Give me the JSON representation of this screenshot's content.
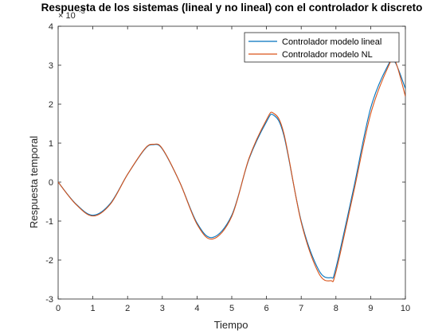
{
  "chart_data": {
    "type": "line",
    "title": "Respuesta de los sistemas (lineal y no lineal) con el controlador k discreto",
    "xlabel": "Tiempo",
    "ylabel": "Respuesta temporal",
    "xlim": [
      0,
      10
    ],
    "ylim": [
      -3,
      4
    ],
    "y_multiplier_label": "× 10",
    "y_multiplier_exponent": "-3",
    "xticks": [
      "0",
      "1",
      "2",
      "3",
      "4",
      "5",
      "6",
      "7",
      "8",
      "9",
      "10"
    ],
    "yticks": [
      "-3",
      "-2",
      "-1",
      "0",
      "1",
      "2",
      "3",
      "4"
    ],
    "grid": false,
    "legend_position": "top-right",
    "x": [
      0,
      0.5,
      1.0,
      1.5,
      2.0,
      2.5,
      2.75,
      3.0,
      3.5,
      4.0,
      4.45,
      5.0,
      5.5,
      6.0,
      6.2,
      6.5,
      7.0,
      7.5,
      7.85,
      8.0,
      8.5,
      9.0,
      9.5,
      9.7,
      10.0
    ],
    "series": [
      {
        "name": "Controlador modelo lineal",
        "color": "#0072BD",
        "values": [
          0,
          -0.55,
          -0.85,
          -0.55,
          0.2,
          0.85,
          0.96,
          0.85,
          0.0,
          -1.05,
          -1.42,
          -0.85,
          0.6,
          1.55,
          1.72,
          1.2,
          -1.0,
          -2.25,
          -2.45,
          -2.2,
          -0.2,
          1.9,
          3.0,
          3.08,
          2.4
        ]
      },
      {
        "name": "Controlador modelo NL",
        "color": "#D95319",
        "values": [
          0,
          -0.56,
          -0.87,
          -0.57,
          0.2,
          0.86,
          0.97,
          0.86,
          0.0,
          -1.08,
          -1.46,
          -0.88,
          0.62,
          1.6,
          1.77,
          1.25,
          -1.03,
          -2.33,
          -2.53,
          -2.3,
          -0.3,
          1.75,
          2.95,
          3.12,
          2.2
        ]
      }
    ]
  }
}
